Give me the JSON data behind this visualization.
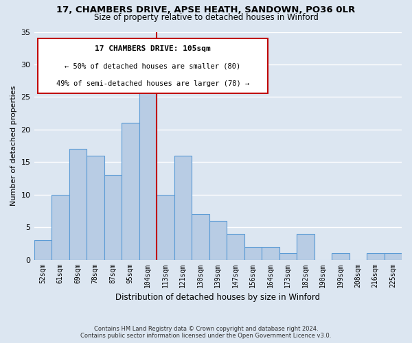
{
  "title": "17, CHAMBERS DRIVE, APSE HEATH, SANDOWN, PO36 0LR",
  "subtitle": "Size of property relative to detached houses in Winford",
  "xlabel": "Distribution of detached houses by size in Winford",
  "ylabel": "Number of detached properties",
  "categories": [
    "52sqm",
    "61sqm",
    "69sqm",
    "78sqm",
    "87sqm",
    "95sqm",
    "104sqm",
    "113sqm",
    "121sqm",
    "130sqm",
    "139sqm",
    "147sqm",
    "156sqm",
    "164sqm",
    "173sqm",
    "182sqm",
    "190sqm",
    "199sqm",
    "208sqm",
    "216sqm",
    "225sqm"
  ],
  "values": [
    3,
    10,
    17,
    16,
    13,
    21,
    26,
    10,
    16,
    7,
    6,
    4,
    2,
    2,
    1,
    4,
    0,
    1,
    0,
    1,
    1
  ],
  "bar_color": "#b8cce4",
  "bar_edge_color": "#5b9bd5",
  "vline_color": "#c00000",
  "vline_index": 6,
  "ylim": [
    0,
    35
  ],
  "yticks": [
    0,
    5,
    10,
    15,
    20,
    25,
    30,
    35
  ],
  "grid_color": "#ffffff",
  "bg_color": "#dce6f1",
  "annotation_title": "17 CHAMBERS DRIVE: 105sqm",
  "annotation_line1": "← 50% of detached houses are smaller (80)",
  "annotation_line2": "49% of semi-detached houses are larger (78) →",
  "annotation_box_color": "#ffffff",
  "annotation_box_edge": "#c00000",
  "footer1": "Contains HM Land Registry data © Crown copyright and database right 2024.",
  "footer2": "Contains public sector information licensed under the Open Government Licence v3.0."
}
